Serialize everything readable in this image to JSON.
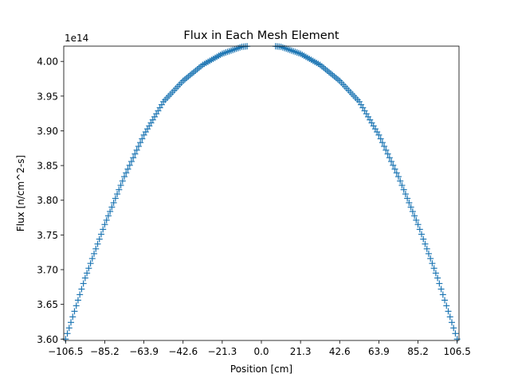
{
  "chart_data": {
    "type": "scatter",
    "title": "Flux in Each Mesh Element",
    "xlabel": "Position [cm]",
    "ylabel": "Flux [n/cm^2-s]",
    "y_offset_text": "1e14",
    "xlim": [
      -107.5,
      107.5
    ],
    "ylim": [
      3.598,
      4.022
    ],
    "x_ticks": [
      -106.5,
      -85.2,
      -63.9,
      -42.6,
      -21.3,
      0.0,
      21.3,
      42.6,
      63.9,
      85.2,
      106.5
    ],
    "x_tick_labels": [
      "−106.5",
      "−85.2",
      "−63.9",
      "−42.6",
      "−21.3",
      "0.0",
      "21.3",
      "42.6",
      "63.9",
      "85.2",
      "106.5"
    ],
    "y_ticks": [
      3.6,
      3.65,
      3.7,
      3.75,
      3.8,
      3.85,
      3.9,
      3.95,
      4.0
    ],
    "y_tick_labels": [
      "3.60",
      "3.65",
      "3.70",
      "3.75",
      "3.80",
      "3.85",
      "3.90",
      "3.95",
      "4.00"
    ],
    "marker": "+",
    "marker_color": "#1f77b4",
    "grid": false,
    "series": [
      {
        "x": [
          -106.5,
          -95.85,
          -85.2,
          -74.55,
          -63.9,
          -53.25,
          -42.6,
          -31.95,
          -21.3,
          -10.65,
          0.0,
          10.65,
          21.3,
          31.95,
          42.6,
          53.25,
          63.9,
          74.55,
          85.2,
          95.85,
          106.5
        ],
        "y": [
          3.6,
          3.688,
          3.765,
          3.834,
          3.894,
          3.942,
          3.972,
          3.995,
          4.011,
          4.021,
          4.024,
          4.021,
          4.011,
          3.995,
          3.972,
          3.942,
          3.894,
          3.834,
          3.765,
          3.688,
          3.6
        ]
      }
    ]
  }
}
